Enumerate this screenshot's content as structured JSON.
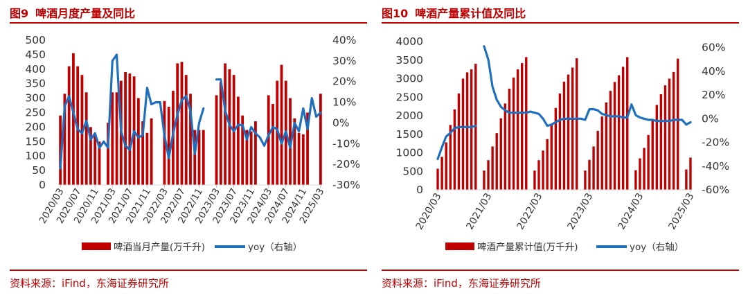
{
  "chart_data": [
    {
      "type": "bar+line",
      "figure_no": "图9",
      "title": "啤酒月度产量及同比",
      "source": "资料来源：iFind，东海证券研究所",
      "categories": [
        "2020/03",
        "2020/04",
        "2020/05",
        "2020/06",
        "2020/07",
        "2020/08",
        "2020/09",
        "2020/10",
        "2020/11",
        "2020/12",
        "2021/01",
        "2021/02",
        "2021/03",
        "2021/04",
        "2021/05",
        "2021/06",
        "2021/07",
        "2021/08",
        "2021/09",
        "2021/10",
        "2021/11",
        "2021/12",
        "2022/01",
        "2022/02",
        "2022/03",
        "2022/04",
        "2022/05",
        "2022/06",
        "2022/07",
        "2022/08",
        "2022/09",
        "2022/10",
        "2022/11",
        "2022/12",
        "2023/01",
        "2023/02",
        "2023/03",
        "2023/04",
        "2023/05",
        "2023/06",
        "2023/07",
        "2023/08",
        "2023/09",
        "2023/10",
        "2023/11",
        "2023/12",
        "2024/01",
        "2024/02",
        "2024/03",
        "2024/04",
        "2024/05",
        "2024/06",
        "2024/07",
        "2024/08",
        "2024/09",
        "2024/10",
        "2024/11",
        "2024/12",
        "2025/01",
        "2025/02",
        "2025/03"
      ],
      "xtick_labels": [
        "2020/03",
        "2020/07",
        "2020/11",
        "2021/03",
        "2021/07",
        "2021/11",
        "2022/03",
        "2022/07",
        "2022/11",
        "2023/03",
        "2023/07",
        "2023/11",
        "2024/03",
        "2024/07",
        "2024/11",
        "2025/03"
      ],
      "series": [
        {
          "name": "啤酒当月产量(万千升)",
          "axis": "left",
          "color": "#c00000",
          "values": [
            240,
            315,
            410,
            455,
            410,
            380,
            320,
            200,
            175,
            150,
            null,
            215,
            320,
            320,
            360,
            390,
            385,
            375,
            300,
            220,
            180,
            230,
            null,
            null,
            290,
            270,
            325,
            420,
            425,
            380,
            315,
            190,
            190,
            190,
            null,
            null,
            310,
            355,
            420,
            400,
            380,
            305,
            240,
            190,
            185,
            220,
            null,
            null,
            310,
            280,
            360,
            415,
            360,
            300,
            230,
            180,
            175,
            250,
            null,
            null,
            315
          ]
        },
        {
          "name": "yoy（右轴）",
          "axis": "right",
          "color": "#1f6fbf",
          "values": [
            -22,
            8,
            13,
            5,
            -3,
            -5,
            1,
            -8,
            -5,
            -12,
            -9,
            -12,
            30,
            33,
            -4,
            -11,
            -13,
            -4,
            -7,
            -6,
            17,
            9,
            10,
            10,
            -6,
            -17,
            -5,
            4,
            11,
            13,
            6,
            -15,
            0,
            7,
            null,
            null,
            21,
            21,
            6,
            -1,
            -4,
            -1,
            -1,
            -8,
            -2,
            -5,
            -7,
            -11,
            -6,
            -2,
            -3,
            -10,
            -4,
            -12,
            0,
            -4,
            7,
            -3,
            12,
            3,
            5
          ]
        }
      ],
      "ylim_left": [
        0,
        500
      ],
      "yticks_left": [
        "500",
        "450",
        "400",
        "350",
        "300",
        "250",
        "200",
        "150",
        "100",
        "50",
        "0"
      ],
      "ylim_right": [
        -30,
        40
      ],
      "yticks_right": [
        "40%",
        "30%",
        "20%",
        "10%",
        "0%",
        "-10%",
        "-20%",
        "-30%"
      ],
      "legend": {
        "bar": "啤酒当月产量(万千升)",
        "line": "yoy（右轴）"
      }
    },
    {
      "type": "bar+line",
      "figure_no": "图10",
      "title": "啤酒产量累计值及同比",
      "source": "资料来源：iFind，东海证券研究所",
      "categories": [
        "2020/03",
        "2020/04",
        "2020/05",
        "2020/06",
        "2020/07",
        "2020/08",
        "2020/09",
        "2020/10",
        "2020/11",
        "2020/12",
        "2021/01",
        "2021/02",
        "2021/03",
        "2021/04",
        "2021/05",
        "2021/06",
        "2021/07",
        "2021/08",
        "2021/09",
        "2021/10",
        "2021/11",
        "2021/12",
        "2022/01",
        "2022/02",
        "2022/03",
        "2022/04",
        "2022/05",
        "2022/06",
        "2022/07",
        "2022/08",
        "2022/09",
        "2022/10",
        "2022/11",
        "2022/12",
        "2023/01",
        "2023/02",
        "2023/03",
        "2023/04",
        "2023/05",
        "2023/06",
        "2023/07",
        "2023/08",
        "2023/09",
        "2023/10",
        "2023/11",
        "2023/12",
        "2024/01",
        "2024/02",
        "2024/03",
        "2024/04",
        "2024/05",
        "2024/06",
        "2024/07",
        "2024/08",
        "2024/09",
        "2024/10",
        "2024/11",
        "2024/12",
        "2025/01",
        "2025/02",
        "2025/03"
      ],
      "xtick_labels": [
        "2020/03",
        "2021/03",
        "2022/03",
        "2023/03",
        "2024/03",
        "2025/03"
      ],
      "series": [
        {
          "name": "啤酒产量累计值(万千升)",
          "axis": "left",
          "color": "#c00000",
          "values": [
            570,
            890,
            1280,
            1750,
            2170,
            2600,
            3000,
            3170,
            3250,
            3400,
            null,
            520,
            800,
            1170,
            1530,
            1930,
            2330,
            2730,
            3030,
            3250,
            3420,
            3580,
            null,
            520,
            800,
            1060,
            1370,
            1780,
            2210,
            2600,
            2920,
            3110,
            3300,
            3550,
            null,
            520,
            810,
            1170,
            1590,
            1980,
            2360,
            2670,
            2910,
            3090,
            3320,
            3580,
            null,
            530,
            850,
            1130,
            1480,
            1900,
            2290,
            2580,
            2820,
            3000,
            3180,
            3540,
            null,
            550,
            870
          ]
        },
        {
          "name": "yoy（右轴）",
          "axis": "right",
          "color": "#1f6fbf",
          "values": [
            -34,
            -24,
            -15,
            -12,
            -8,
            -7,
            -7,
            -7,
            -7,
            -6,
            null,
            61,
            50,
            27,
            16,
            10,
            7,
            5,
            5,
            5,
            5,
            5,
            6,
            5,
            4,
            0,
            -6,
            -5,
            -3,
            -1,
            0,
            0,
            0,
            0,
            0,
            -1,
            8,
            8,
            7,
            4,
            3,
            2,
            2,
            2,
            1,
            1,
            12,
            3,
            1,
            0,
            -1,
            -1,
            -2,
            -2,
            -2,
            -2,
            -1,
            -1,
            -1,
            -5,
            -3
          ]
        }
      ],
      "ylim_left": [
        0,
        4000
      ],
      "yticks_left": [
        "4000",
        "3500",
        "3000",
        "2500",
        "2000",
        "1500",
        "1000",
        "500",
        "0"
      ],
      "ylim_right": [
        -60,
        65
      ],
      "yticks_right": [
        "60%",
        "40%",
        "20%",
        "0%",
        "-20%",
        "-40%",
        "-60%"
      ],
      "legend": {
        "bar": "啤酒产量累计值(万千升)",
        "line": "yoy（右轴）"
      }
    }
  ]
}
